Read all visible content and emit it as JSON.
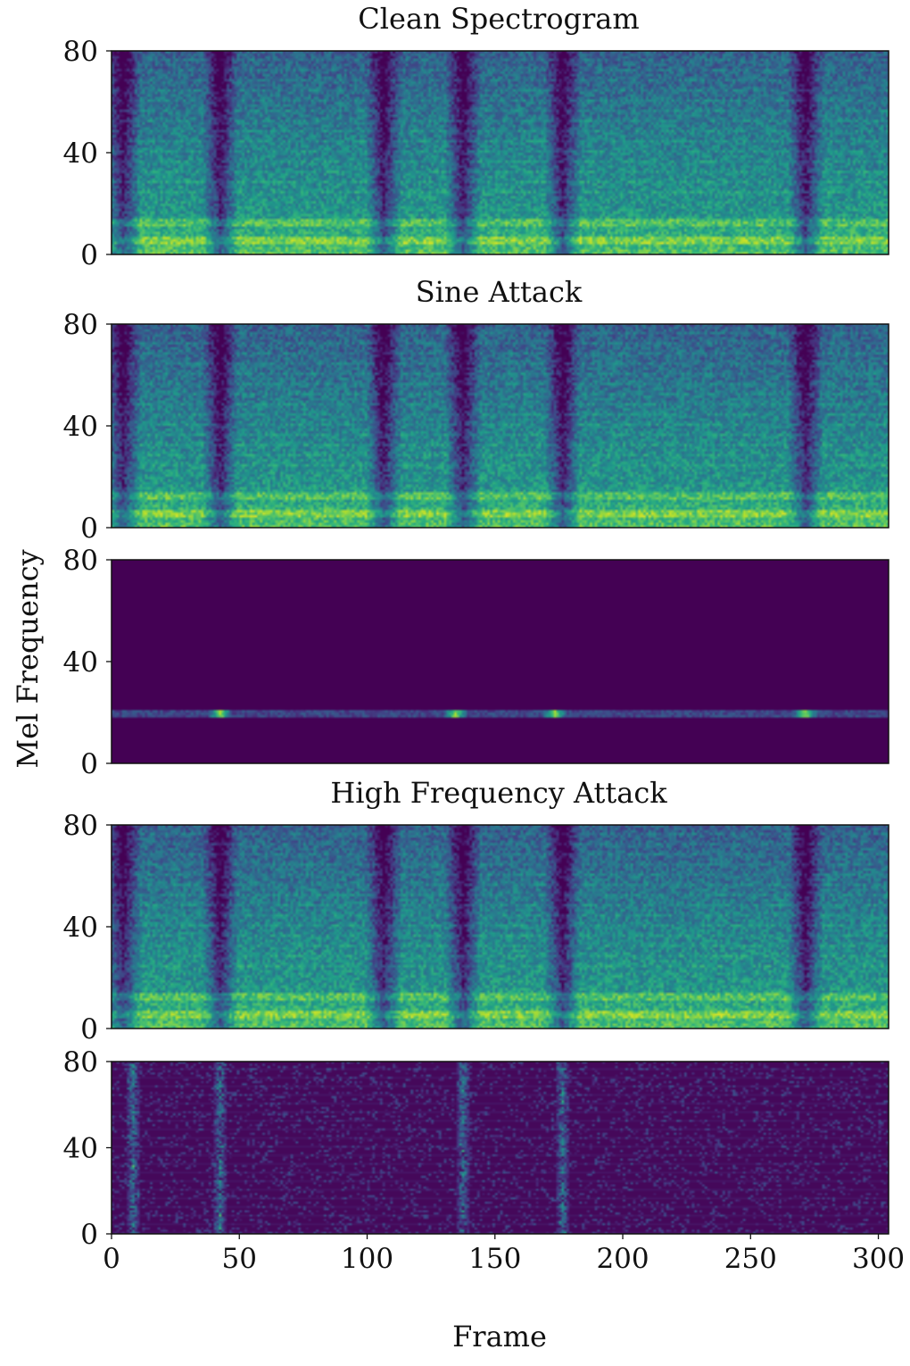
{
  "figure": {
    "shared_ylabel": "Mel Frequency",
    "shared_xlabel": "Frame"
  },
  "colors": {
    "colormap": "viridis",
    "background": "#ffffff",
    "axis": "#111111"
  },
  "chart_data": [
    {
      "type": "heatmap",
      "title": "Clean Spectrogram",
      "xlim": [
        0,
        304
      ],
      "ylim": [
        0,
        80
      ],
      "yticks": [
        "80",
        "40",
        "0"
      ],
      "xticks": [],
      "content": "speech mel spectrogram",
      "silent_frames": [
        4,
        42,
        106,
        137,
        176,
        271
      ],
      "bright_band_bins": [
        5,
        12
      ]
    },
    {
      "type": "heatmap",
      "title": "Sine Attack",
      "xlim": [
        0,
        304
      ],
      "ylim": [
        0,
        80
      ],
      "yticks": [
        "80",
        "40",
        "0"
      ],
      "xticks": [],
      "content": "speech mel spectrogram",
      "silent_frames": [
        4,
        42,
        106,
        137,
        176,
        271
      ],
      "bright_band_bins": [
        5,
        12
      ]
    },
    {
      "type": "heatmap",
      "title": "",
      "xlim": [
        0,
        304
      ],
      "ylim": [
        0,
        80
      ],
      "yticks": [
        "80",
        "40",
        "0"
      ],
      "xticks": [],
      "content": "difference: single horizontal band",
      "band_bin": 19,
      "hot_frames": [
        42,
        134,
        173,
        271
      ]
    },
    {
      "type": "heatmap",
      "title": "High Frequency Attack",
      "xlim": [
        0,
        304
      ],
      "ylim": [
        0,
        80
      ],
      "yticks": [
        "80",
        "40",
        "0"
      ],
      "xticks": [],
      "content": "speech mel spectrogram",
      "silent_frames": [
        4,
        42,
        106,
        137,
        176,
        271
      ],
      "bright_band_bins": [
        5,
        12
      ]
    },
    {
      "type": "heatmap",
      "title": "",
      "xlim": [
        0,
        304
      ],
      "ylim": [
        0,
        80
      ],
      "yticks": [
        "80",
        "40",
        "0"
      ],
      "xticks": [
        "0",
        "50",
        "100",
        "150",
        "200",
        "250",
        "300"
      ],
      "xtick_values": [
        0,
        50,
        100,
        150,
        200,
        250,
        300
      ],
      "content": "difference: sparse scattered residual",
      "hot_frames": [
        8,
        42,
        137,
        176
      ]
    }
  ]
}
